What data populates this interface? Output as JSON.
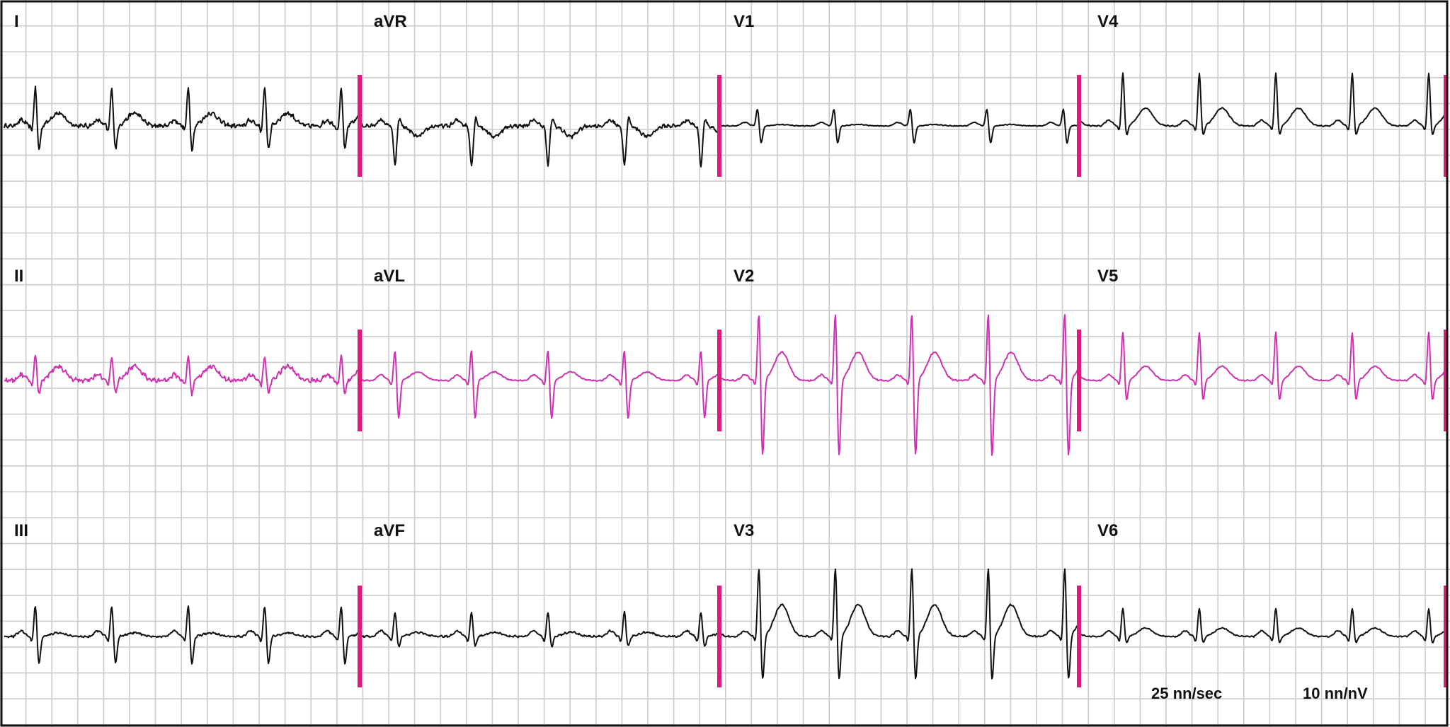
{
  "colors": {
    "background": "#ffffff",
    "grid": "#cccccc",
    "border": "#111111",
    "trace_default": "#111111",
    "trace_highlight": "#cc33b0",
    "marker": "#e0197d"
  },
  "rows": [
    {
      "name": "row-1",
      "trace_color": "default",
      "leads": [
        {
          "name": "I",
          "amp": 0.55,
          "noise": 1.2,
          "tAmp": 0.18,
          "sDepth": 0.35,
          "qrs": "normal"
        },
        {
          "name": "aVR",
          "amp": 0.55,
          "noise": 1.0,
          "tAmp": -0.15,
          "sDepth": 0.0,
          "qrs": "inverted"
        },
        {
          "name": "V1",
          "amp": 0.25,
          "noise": 0.2,
          "tAmp": 0.0,
          "sDepth": 0.25,
          "qrs": "small"
        },
        {
          "name": "V4",
          "amp": 0.75,
          "noise": 0.3,
          "tAmp": 0.25,
          "sDepth": 0.15,
          "qrs": "normal"
        }
      ]
    },
    {
      "name": "row-2",
      "trace_color": "highlight",
      "leads": [
        {
          "name": "II",
          "amp": 0.35,
          "noise": 1.2,
          "tAmp": 0.2,
          "sDepth": 0.2,
          "qrs": "normal"
        },
        {
          "name": "aVL",
          "amp": 0.45,
          "noise": 0.3,
          "tAmp": 0.12,
          "sDepth": 0.55,
          "qrs": "normal"
        },
        {
          "name": "V2",
          "amp": 1.0,
          "noise": 0.4,
          "tAmp": 0.4,
          "sDepth": 1.1,
          "qrs": "normal"
        },
        {
          "name": "V5",
          "amp": 0.7,
          "noise": 0.3,
          "tAmp": 0.2,
          "sDepth": 0.3,
          "qrs": "normal"
        }
      ]
    },
    {
      "name": "row-3",
      "trace_color": "default",
      "leads": [
        {
          "name": "III",
          "amp": 0.45,
          "noise": 0.5,
          "tAmp": 0.05,
          "sDepth": 0.4,
          "qrs": "normal"
        },
        {
          "name": "aVF",
          "amp": 0.35,
          "noise": 0.5,
          "tAmp": 0.06,
          "sDepth": 0.15,
          "qrs": "normal"
        },
        {
          "name": "V3",
          "amp": 1.0,
          "noise": 0.4,
          "tAmp": 0.45,
          "sDepth": 0.65,
          "qrs": "normal"
        },
        {
          "name": "V6",
          "amp": 0.4,
          "noise": 0.3,
          "tAmp": 0.12,
          "sDepth": 0.1,
          "qrs": "normal"
        }
      ]
    }
  ],
  "footer": {
    "speed": "25 nn/sec",
    "gain": "10 nn/nV"
  }
}
